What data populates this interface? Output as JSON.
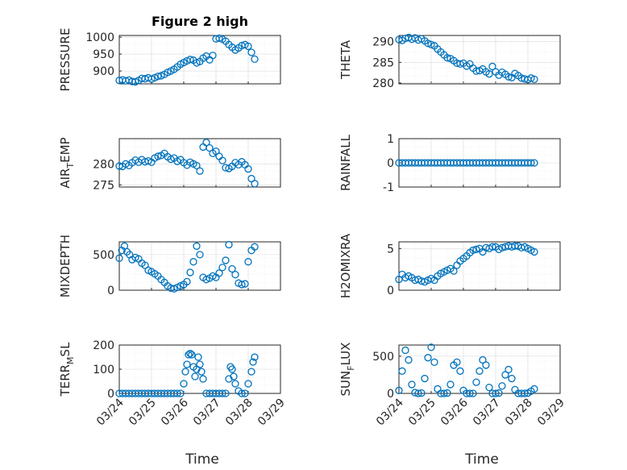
{
  "colors": {
    "marker": "#0072BD",
    "axis": "#262626",
    "grid": "#d9d9d9"
  },
  "chart_data": [
    {
      "type": "scatter",
      "title": "Figure 2 high",
      "ylabel": "PRESSURE",
      "yticks": [
        900,
        950,
        1000
      ],
      "ylim": [
        862,
        1005
      ],
      "xlim": [
        0,
        5
      ],
      "grid": true,
      "series": [
        {
          "x": [
            0.0,
            0.1,
            0.2,
            0.3,
            0.4,
            0.5,
            0.6,
            0.7,
            0.8,
            0.9,
            1.0,
            1.1,
            1.2,
            1.3,
            1.4,
            1.5,
            1.6,
            1.7,
            1.8,
            1.9,
            2.0,
            2.1,
            2.2,
            2.3,
            2.4,
            2.5,
            2.6,
            2.7,
            2.8,
            2.9,
            3.0,
            3.1,
            3.2,
            3.3,
            3.4,
            3.5,
            3.6,
            3.7,
            3.8,
            3.9,
            4.0,
            4.1,
            4.2
          ],
          "y": [
            872,
            874,
            871,
            873,
            869,
            868,
            872,
            878,
            877,
            880,
            876,
            880,
            884,
            886,
            890,
            896,
            900,
            905,
            912,
            920,
            925,
            930,
            934,
            932,
            924,
            928,
            938,
            944,
            933,
            946,
            995,
            997,
            994,
            988,
            978,
            970,
            962,
            968,
            975,
            978,
            973,
            955,
            935
          ]
        }
      ]
    },
    {
      "type": "scatter",
      "title": "",
      "ylabel": "THETA",
      "yticks": [
        280,
        285,
        290
      ],
      "ylim": [
        279.8,
        291.5
      ],
      "xlim": [
        0,
        5
      ],
      "grid": true,
      "series": [
        {
          "x": [
            0.0,
            0.1,
            0.2,
            0.3,
            0.4,
            0.5,
            0.6,
            0.7,
            0.8,
            0.9,
            1.0,
            1.1,
            1.2,
            1.3,
            1.4,
            1.5,
            1.6,
            1.7,
            1.8,
            1.9,
            2.0,
            2.1,
            2.2,
            2.3,
            2.4,
            2.5,
            2.6,
            2.7,
            2.8,
            2.9,
            3.0,
            3.1,
            3.2,
            3.3,
            3.4,
            3.5,
            3.6,
            3.7,
            3.8,
            3.9,
            4.0,
            4.1,
            4.2
          ],
          "y": [
            290.5,
            290.3,
            290.8,
            291.0,
            290.6,
            290.9,
            290.4,
            290.7,
            290.2,
            289.6,
            289.3,
            289.0,
            288.2,
            287.5,
            286.8,
            286.1,
            285.9,
            285.4,
            284.8,
            284.6,
            284.8,
            284.1,
            284.6,
            283.6,
            282.9,
            283.0,
            283.4,
            282.7,
            282.2,
            284.0,
            282.7,
            281.9,
            282.6,
            282.1,
            281.5,
            281.3,
            282.3,
            281.8,
            281.2,
            281.0,
            280.8,
            281.2,
            280.9
          ]
        }
      ]
    },
    {
      "type": "scatter",
      "title": "",
      "ylabel": "AIR_TEMP",
      "yticks": [
        275,
        280
      ],
      "ylim": [
        274.5,
        286
      ],
      "xlim": [
        0,
        5
      ],
      "grid": true,
      "series": [
        {
          "x": [
            0.0,
            0.1,
            0.2,
            0.3,
            0.4,
            0.5,
            0.6,
            0.7,
            0.8,
            0.9,
            1.0,
            1.1,
            1.2,
            1.3,
            1.4,
            1.5,
            1.6,
            1.7,
            1.8,
            1.9,
            2.0,
            2.1,
            2.2,
            2.3,
            2.4,
            2.5,
            2.6,
            2.7,
            2.8,
            2.9,
            3.0,
            3.1,
            3.2,
            3.3,
            3.4,
            3.5,
            3.6,
            3.7,
            3.8,
            3.9,
            4.0,
            4.1,
            4.2
          ],
          "y": [
            279.5,
            279.4,
            280.0,
            279.6,
            280.3,
            280.9,
            280.4,
            281.0,
            280.5,
            280.7,
            280.4,
            281.4,
            281.8,
            282.0,
            282.5,
            281.7,
            281.1,
            281.4,
            280.6,
            281.0,
            280.3,
            279.7,
            280.4,
            280.0,
            279.6,
            278.3,
            284.0,
            285.1,
            283.8,
            282.5,
            283.0,
            281.8,
            280.8,
            279.1,
            278.9,
            279.4,
            280.3,
            279.8,
            280.5,
            279.8,
            278.8,
            276.5,
            275.3
          ]
        }
      ]
    },
    {
      "type": "scatter",
      "title": "",
      "ylabel": "RAINFALL",
      "yticks": [
        -1,
        0,
        1
      ],
      "ylim": [
        -1,
        1
      ],
      "xlim": [
        0,
        5
      ],
      "grid": true,
      "series": [
        {
          "x": [
            0.0,
            0.1,
            0.2,
            0.3,
            0.4,
            0.5,
            0.6,
            0.7,
            0.8,
            0.9,
            1.0,
            1.1,
            1.2,
            1.3,
            1.4,
            1.5,
            1.6,
            1.7,
            1.8,
            1.9,
            2.0,
            2.1,
            2.2,
            2.3,
            2.4,
            2.5,
            2.6,
            2.7,
            2.8,
            2.9,
            3.0,
            3.1,
            3.2,
            3.3,
            3.4,
            3.5,
            3.6,
            3.7,
            3.8,
            3.9,
            4.0,
            4.1,
            4.2
          ],
          "y": [
            0,
            0,
            0,
            0,
            0,
            0,
            0,
            0,
            0,
            0,
            0,
            0,
            0,
            0,
            0,
            0,
            0,
            0,
            0,
            0,
            0,
            0,
            0,
            0,
            0,
            0,
            0,
            0,
            0,
            0,
            0,
            0,
            0,
            0,
            0,
            0,
            0,
            0,
            0,
            0,
            0,
            0,
            0
          ]
        }
      ]
    },
    {
      "type": "scatter",
      "title": "",
      "ylabel": "MIXDEPTH",
      "yticks": [
        0,
        500
      ],
      "ylim": [
        0,
        680
      ],
      "xlim": [
        0,
        5
      ],
      "grid": true,
      "series": [
        {
          "x": [
            0.0,
            0.08,
            0.16,
            0.24,
            0.32,
            0.4,
            0.5,
            0.6,
            0.7,
            0.8,
            0.9,
            1.0,
            1.1,
            1.2,
            1.3,
            1.4,
            1.5,
            1.6,
            1.7,
            1.8,
            1.9,
            2.0,
            2.1,
            2.2,
            2.3,
            2.4,
            2.5,
            2.6,
            2.7,
            2.8,
            2.9,
            3.0,
            3.1,
            3.2,
            3.3,
            3.4,
            3.5,
            3.6,
            3.7,
            3.8,
            3.9,
            4.0,
            4.1,
            4.2
          ],
          "y": [
            450,
            560,
            620,
            540,
            500,
            430,
            460,
            440,
            380,
            350,
            280,
            260,
            230,
            200,
            150,
            110,
            60,
            30,
            20,
            40,
            60,
            80,
            120,
            250,
            400,
            620,
            500,
            180,
            150,
            170,
            200,
            180,
            240,
            320,
            420,
            640,
            300,
            220,
            100,
            80,
            90,
            400,
            560,
            610
          ]
        }
      ]
    },
    {
      "type": "scatter",
      "title": "",
      "ylabel": "H2OMIXRA",
      "yticks": [
        0,
        5
      ],
      "ylim": [
        0,
        5.8
      ],
      "xlim": [
        0,
        5
      ],
      "grid": true,
      "series": [
        {
          "x": [
            0.0,
            0.1,
            0.2,
            0.3,
            0.4,
            0.5,
            0.6,
            0.7,
            0.8,
            0.9,
            1.0,
            1.1,
            1.2,
            1.3,
            1.4,
            1.5,
            1.6,
            1.7,
            1.8,
            1.9,
            2.0,
            2.1,
            2.2,
            2.3,
            2.4,
            2.5,
            2.6,
            2.7,
            2.8,
            2.9,
            3.0,
            3.1,
            3.2,
            3.3,
            3.4,
            3.5,
            3.6,
            3.7,
            3.8,
            3.9,
            4.0,
            4.1,
            4.2
          ],
          "y": [
            1.3,
            1.9,
            1.5,
            1.7,
            1.5,
            1.2,
            1.3,
            1.1,
            1.0,
            1.2,
            1.4,
            1.2,
            1.7,
            2.0,
            2.2,
            2.4,
            2.6,
            2.3,
            3.0,
            3.5,
            3.8,
            4.1,
            4.5,
            4.8,
            4.9,
            5.0,
            4.6,
            5.1,
            5.0,
            5.2,
            5.2,
            4.9,
            5.1,
            5.2,
            5.3,
            5.2,
            5.3,
            5.3,
            5.1,
            5.2,
            5.0,
            4.8,
            4.6
          ]
        }
      ]
    },
    {
      "type": "scatter",
      "title": "",
      "ylabel": "TERR_MSL",
      "yticks": [
        0,
        100,
        200
      ],
      "ylim": [
        0,
        200
      ],
      "xlim": [
        0,
        5
      ],
      "grid": true,
      "series": [
        {
          "x": [
            0.0,
            0.1,
            0.2,
            0.3,
            0.4,
            0.5,
            0.6,
            0.7,
            0.8,
            0.9,
            1.0,
            1.1,
            1.2,
            1.3,
            1.4,
            1.5,
            1.6,
            1.7,
            1.8,
            1.9,
            2.0,
            2.05,
            2.1,
            2.15,
            2.2,
            2.25,
            2.3,
            2.35,
            2.4,
            2.45,
            2.5,
            2.55,
            2.6,
            2.7,
            2.8,
            2.9,
            3.0,
            3.1,
            3.2,
            3.3,
            3.4,
            3.45,
            3.5,
            3.55,
            3.6,
            3.7,
            3.8,
            3.9,
            4.0,
            4.1,
            4.15,
            4.2
          ],
          "y": [
            0,
            0,
            0,
            0,
            0,
            0,
            0,
            0,
            0,
            0,
            0,
            0,
            0,
            0,
            0,
            0,
            0,
            0,
            0,
            0,
            40,
            90,
            120,
            160,
            165,
            160,
            110,
            70,
            100,
            150,
            120,
            90,
            60,
            0,
            0,
            0,
            0,
            0,
            0,
            0,
            60,
            110,
            100,
            70,
            40,
            10,
            0,
            0,
            40,
            90,
            130,
            150
          ]
        }
      ]
    },
    {
      "type": "scatter",
      "title": "",
      "ylabel": "SUN_FLUX",
      "yticks": [
        0,
        500
      ],
      "ylim": [
        0,
        650
      ],
      "xlim": [
        0,
        5
      ],
      "grid": true,
      "series": [
        {
          "x": [
            0.0,
            0.1,
            0.2,
            0.3,
            0.4,
            0.5,
            0.6,
            0.7,
            0.8,
            0.9,
            1.0,
            1.1,
            1.2,
            1.3,
            1.4,
            1.5,
            1.6,
            1.7,
            1.8,
            1.9,
            2.0,
            2.1,
            2.2,
            2.3,
            2.4,
            2.5,
            2.6,
            2.7,
            2.8,
            2.9,
            3.0,
            3.1,
            3.2,
            3.3,
            3.4,
            3.5,
            3.6,
            3.7,
            3.8,
            3.9,
            4.0,
            4.1,
            4.2
          ],
          "y": [
            40,
            300,
            580,
            450,
            120,
            10,
            0,
            5,
            200,
            480,
            620,
            420,
            60,
            0,
            0,
            5,
            120,
            380,
            420,
            300,
            40,
            0,
            0,
            0,
            150,
            300,
            450,
            380,
            80,
            0,
            0,
            5,
            100,
            250,
            320,
            200,
            50,
            0,
            0,
            0,
            5,
            30,
            60
          ]
        }
      ]
    }
  ],
  "xaxis": {
    "label": "Time",
    "ticklabels": [
      "03/24",
      "03/25",
      "03/26",
      "03/27",
      "03/28",
      "03/29"
    ],
    "tickpos": [
      0,
      1,
      2,
      3,
      4,
      5
    ]
  }
}
